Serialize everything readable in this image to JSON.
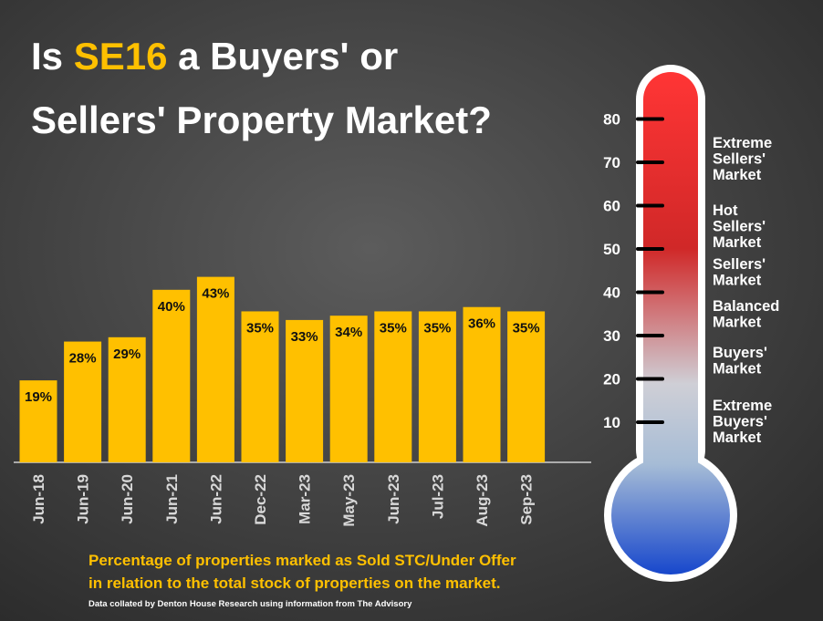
{
  "title": {
    "before": "Is",
    "highlight": "SE16",
    "after": "a Buyers' or",
    "line2": "Sellers' Property Market?"
  },
  "chart_data": {
    "type": "bar",
    "color": "#ffc000",
    "categories": [
      "Jun-18",
      "Jun-19",
      "Jun-20",
      "Jun-21",
      "Jun-22",
      "Dec-22",
      "Mar-23",
      "May-23",
      "Jun-23",
      "Jul-23",
      "Aug-23",
      "Sep-23"
    ],
    "values": [
      19,
      28,
      29,
      40,
      43,
      35,
      33,
      34,
      35,
      35,
      36,
      35
    ],
    "value_labels": [
      "19%",
      "28%",
      "29%",
      "40%",
      "43%",
      "35%",
      "33%",
      "34%",
      "35%",
      "35%",
      "36%",
      "35%"
    ]
  },
  "thermometer": {
    "ticks": [
      10,
      20,
      30,
      40,
      50,
      60,
      70,
      80
    ],
    "zones": [
      [
        "Extreme",
        "Sellers'",
        "Market"
      ],
      [
        "Hot",
        "Sellers'",
        "Market"
      ],
      [
        "Sellers'",
        "Market"
      ],
      [
        "Balanced",
        "Market"
      ],
      [
        "Buyers'",
        "Market"
      ],
      [
        "Extreme",
        "Buyers'",
        "Market"
      ]
    ]
  },
  "caption": [
    "Percentage of properties marked as Sold STC/Under Offer",
    "in relation to the total stock of properties on the market."
  ],
  "source": "Data collated by Denton House Research using information from The Advisory"
}
